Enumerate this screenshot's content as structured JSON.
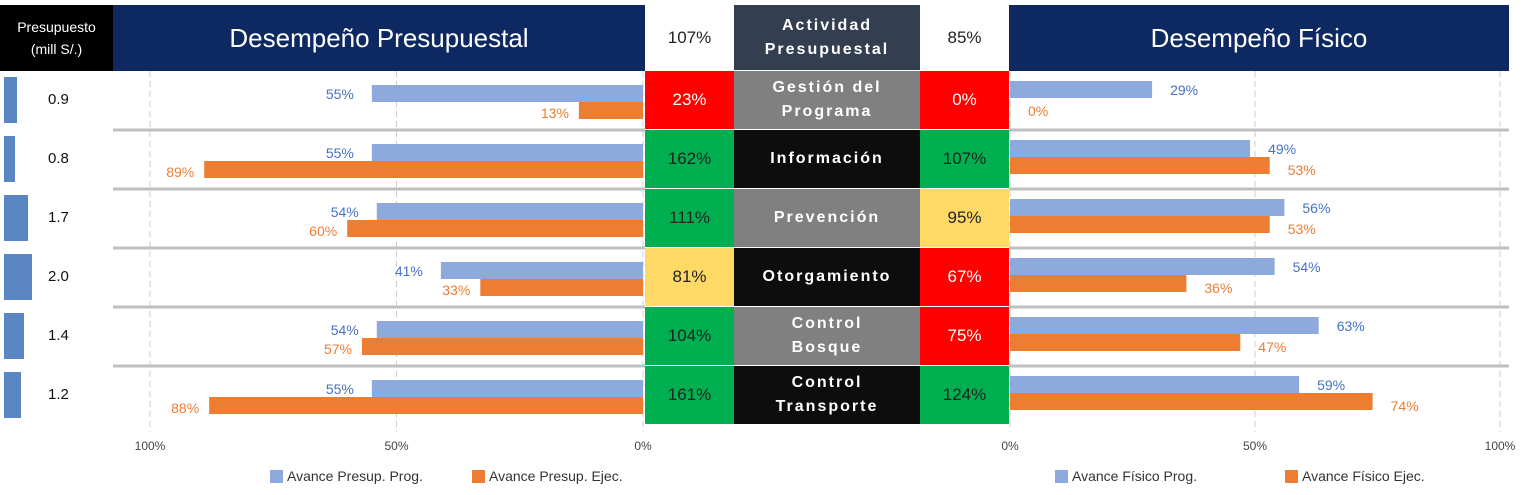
{
  "header": {
    "budget_line1": "Presupuesto",
    "budget_line2": "(mill S/.)",
    "left_title": "Desempeño Presupuestal",
    "right_title": "Desempeño Físico",
    "left_pct": "107%",
    "activity_line1": "Actividad",
    "activity_line2": "Presupuestal",
    "right_pct": "85%"
  },
  "colors": {
    "navy": "#0e2862",
    "blue_bar": "#8eaadc",
    "orange_bar": "#ed7d31",
    "blue_label": "#4472c4",
    "orange_label": "#ed7d31",
    "green": "#00b050",
    "yellow": "#ffd966",
    "red": "#ff0000",
    "dark_cell": "#0d0d0d",
    "grey_cell": "#808080"
  },
  "rows": [
    {
      "activity_line1": "Gestión del",
      "activity_line2": "Programa",
      "activity_bg": "grey",
      "budget": "0.9",
      "budget_bar": 0.9,
      "left_pct": "23%",
      "left_color": "red",
      "right_pct": "0%",
      "right_color": "red",
      "presup_prog": 55,
      "presup_ejec": 13,
      "fisico_prog": 29,
      "fisico_ejec": 0
    },
    {
      "activity_line1": "Información",
      "activity_line2": "",
      "activity_bg": "dark",
      "budget": "0.8",
      "budget_bar": 0.8,
      "left_pct": "162%",
      "left_color": "green",
      "right_pct": "107%",
      "right_color": "green",
      "presup_prog": 55,
      "presup_ejec": 89,
      "fisico_prog": 49,
      "fisico_ejec": 53
    },
    {
      "activity_line1": "Prevención",
      "activity_line2": "",
      "activity_bg": "grey",
      "budget": "1.7",
      "budget_bar": 1.7,
      "left_pct": "111%",
      "left_color": "green",
      "right_pct": "95%",
      "right_color": "yellow",
      "presup_prog": 54,
      "presup_ejec": 60,
      "fisico_prog": 56,
      "fisico_ejec": 53
    },
    {
      "activity_line1": "Otorgamiento",
      "activity_line2": "",
      "activity_bg": "dark",
      "budget": "2.0",
      "budget_bar": 2.0,
      "left_pct": "81%",
      "left_color": "yellow",
      "right_pct": "67%",
      "right_color": "red",
      "presup_prog": 41,
      "presup_ejec": 33,
      "fisico_prog": 54,
      "fisico_ejec": 36
    },
    {
      "activity_line1": "Control",
      "activity_line2": "Bosque",
      "activity_bg": "grey",
      "budget": "1.4",
      "budget_bar": 1.4,
      "left_pct": "104%",
      "left_color": "green",
      "right_pct": "75%",
      "right_color": "red",
      "presup_prog": 54,
      "presup_ejec": 57,
      "fisico_prog": 63,
      "fisico_ejec": 47
    },
    {
      "activity_line1": "Control",
      "activity_line2": "Transporte",
      "activity_bg": "dark",
      "budget": "1.2",
      "budget_bar": 1.2,
      "left_pct": "161%",
      "left_color": "green",
      "right_pct": "124%",
      "right_color": "green",
      "presup_prog": 55,
      "presup_ejec": 88,
      "fisico_prog": 59,
      "fisico_ejec": 74
    }
  ],
  "chart_data": [
    {
      "type": "bar",
      "orientation": "horizontal",
      "direction": "right-to-left",
      "title": "Desempeño Presupuestal",
      "categories": [
        "Gestión del Programa",
        "Información",
        "Prevención",
        "Otorgamiento",
        "Control Bosque",
        "Control Transporte"
      ],
      "series": [
        {
          "name": "Avance Presup. Prog.",
          "values": [
            55,
            55,
            54,
            41,
            54,
            55
          ]
        },
        {
          "name": "Avance Presup. Ejec.",
          "values": [
            13,
            89,
            60,
            33,
            57,
            88
          ]
        }
      ],
      "xlim": [
        0,
        100
      ],
      "ticks": [
        "100%",
        "50%",
        "0%"
      ],
      "grid": true,
      "legend": "bottom"
    },
    {
      "type": "bar",
      "orientation": "horizontal",
      "title": "Desempeño Físico",
      "categories": [
        "Gestión del Programa",
        "Información",
        "Prevención",
        "Otorgamiento",
        "Control Bosque",
        "Control Transporte"
      ],
      "series": [
        {
          "name": "Avance Físico Prog.",
          "values": [
            29,
            49,
            56,
            54,
            63,
            59
          ]
        },
        {
          "name": "Avance Físico Ejec.",
          "values": [
            0,
            53,
            53,
            36,
            47,
            74
          ]
        }
      ],
      "xlim": [
        0,
        100
      ],
      "ticks": [
        "0%",
        "50%",
        "100%"
      ],
      "grid": true,
      "legend": "bottom"
    }
  ]
}
